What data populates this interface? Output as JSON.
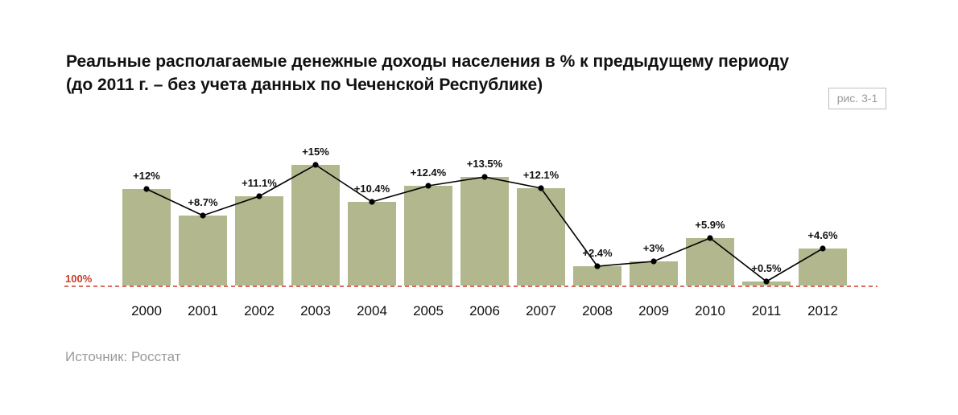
{
  "title": {
    "line1": "Реальные располагаемые денежные доходы населения в % к предыдущему периоду",
    "line2": "(до 2011 г. – без учета данных по Чеченской Республике)"
  },
  "figure_label": "рис. 3-1",
  "source": "Источник: Росстат",
  "colors": {
    "bar": "#b2b78e",
    "line": "#000000",
    "baseline": "#cc3b2b",
    "baseline_label": "#cc3b2b"
  },
  "chart_data": {
    "type": "bar",
    "categories": [
      "2000",
      "2001",
      "2002",
      "2003",
      "2004",
      "2005",
      "2006",
      "2007",
      "2008",
      "2009",
      "2010",
      "2011",
      "2012"
    ],
    "values": [
      12,
      8.7,
      11.1,
      15,
      10.4,
      12.4,
      13.5,
      12.1,
      2.4,
      3,
      5.9,
      0.5,
      4.6
    ],
    "data_labels": [
      "+12%",
      "+8.7%",
      "+11.1%",
      "+15%",
      "+10.4%",
      "+12.4%",
      "+13.5%",
      "+12.1%",
      "+2.4%",
      "+3%",
      "+5.9%",
      "+0.5%",
      "+4.6%"
    ],
    "line_overlay": true,
    "baseline_label": "100%",
    "ylim": [
      0,
      15
    ],
    "grid": false,
    "xlabel": "",
    "ylabel": ""
  }
}
